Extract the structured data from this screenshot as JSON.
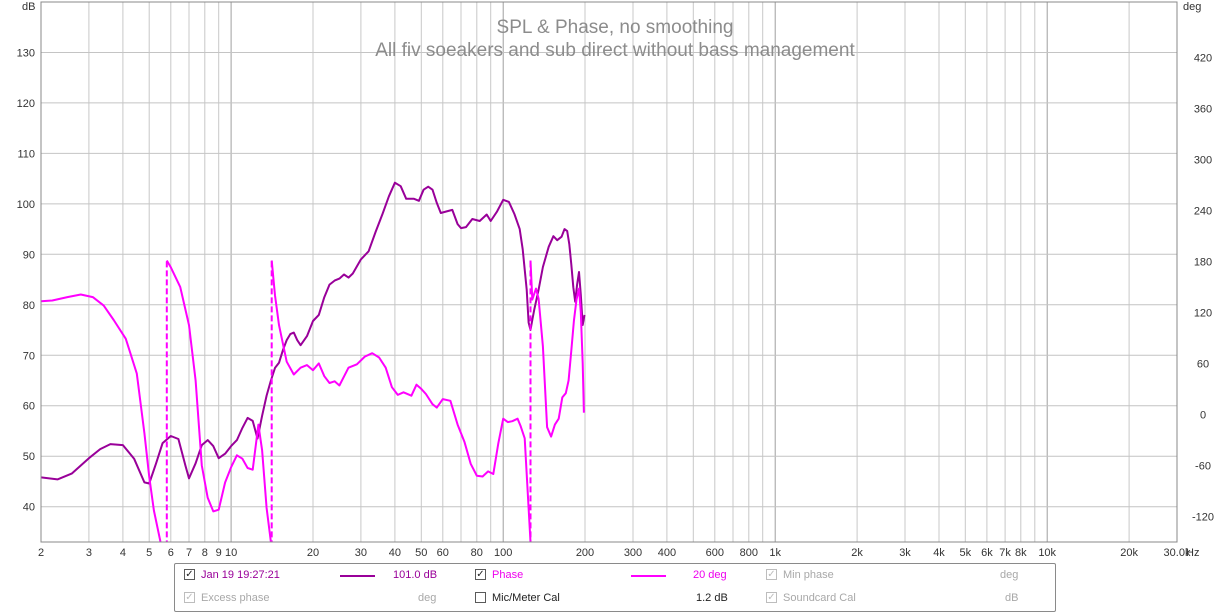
{
  "chart_data": {
    "type": "line",
    "title": "SPL & Phase, no smoothing",
    "subtitle": "All fiv soeakers and sub direct without bass management",
    "x_scale": "log",
    "xlim": [
      2,
      30000
    ],
    "x_unit": "Hz",
    "x_ticks": [
      {
        "v": 2,
        "label": "2"
      },
      {
        "v": 3,
        "label": "3"
      },
      {
        "v": 4,
        "label": "4"
      },
      {
        "v": 5,
        "label": "5"
      },
      {
        "v": 6,
        "label": "6"
      },
      {
        "v": 7,
        "label": "7"
      },
      {
        "v": 8,
        "label": "8"
      },
      {
        "v": 9,
        "label": "9"
      },
      {
        "v": 10,
        "label": "10"
      },
      {
        "v": 20,
        "label": "20"
      },
      {
        "v": 30,
        "label": "30"
      },
      {
        "v": 40,
        "label": "40"
      },
      {
        "v": 50,
        "label": "50"
      },
      {
        "v": 60,
        "label": "60"
      },
      {
        "v": 80,
        "label": "80"
      },
      {
        "v": 100,
        "label": "100"
      },
      {
        "v": 200,
        "label": "200"
      },
      {
        "v": 300,
        "label": "300"
      },
      {
        "v": 400,
        "label": "400"
      },
      {
        "v": 600,
        "label": "600"
      },
      {
        "v": 800,
        "label": "800"
      },
      {
        "v": 1000,
        "label": "1k"
      },
      {
        "v": 2000,
        "label": "2k"
      },
      {
        "v": 3000,
        "label": "3k"
      },
      {
        "v": 4000,
        "label": "4k"
      },
      {
        "v": 5000,
        "label": "5k"
      },
      {
        "v": 6000,
        "label": "6k"
      },
      {
        "v": 7000,
        "label": "7k"
      },
      {
        "v": 8000,
        "label": "8k"
      },
      {
        "v": 10000,
        "label": "10k"
      },
      {
        "v": 20000,
        "label": "20k"
      },
      {
        "v": 30000,
        "label": "30.0k"
      }
    ],
    "ylabel_left": "dB",
    "ylim_left": [
      33,
      140
    ],
    "y_ticks_left": [
      40,
      50,
      60,
      70,
      80,
      90,
      100,
      110,
      120,
      130
    ],
    "ylabel_right": "deg",
    "ylim_right": [
      -150,
      485
    ],
    "y_ticks_right": [
      -120,
      -60,
      0,
      60,
      120,
      180,
      240,
      300,
      360,
      420
    ],
    "grid": true,
    "series": [
      {
        "name": "Jan 19 19:27:21",
        "axis": "left",
        "color": "#990099",
        "points": [
          [
            2,
            45.8
          ],
          [
            2.3,
            45.4
          ],
          [
            2.6,
            46.6
          ],
          [
            3,
            49.6
          ],
          [
            3.3,
            51.4
          ],
          [
            3.6,
            52.4
          ],
          [
            4,
            52.2
          ],
          [
            4.4,
            49.5
          ],
          [
            4.8,
            44.8
          ],
          [
            5,
            44.6
          ],
          [
            5.3,
            48.6
          ],
          [
            5.6,
            52.6
          ],
          [
            6,
            54
          ],
          [
            6.4,
            53.4
          ],
          [
            6.8,
            48
          ],
          [
            7,
            45.6
          ],
          [
            7.4,
            48.6
          ],
          [
            7.8,
            52.2
          ],
          [
            8.2,
            53.2
          ],
          [
            8.6,
            52
          ],
          [
            9,
            49.6
          ],
          [
            9.5,
            50.5
          ],
          [
            10,
            52
          ],
          [
            10.5,
            53.2
          ],
          [
            11,
            55.6
          ],
          [
            11.5,
            57.6
          ],
          [
            12,
            57
          ],
          [
            12.5,
            53.5
          ],
          [
            13,
            58
          ],
          [
            13.5,
            62
          ],
          [
            14,
            65
          ],
          [
            14.5,
            67.5
          ],
          [
            15,
            68.5
          ],
          [
            15.5,
            71
          ],
          [
            16,
            73
          ],
          [
            16.5,
            74.2
          ],
          [
            17,
            74.5
          ],
          [
            17.5,
            73
          ],
          [
            18,
            72
          ],
          [
            19,
            73.8
          ],
          [
            20,
            76.8
          ],
          [
            21,
            78
          ],
          [
            22,
            81.5
          ],
          [
            23,
            84
          ],
          [
            24,
            84.8
          ],
          [
            25,
            85.2
          ],
          [
            26,
            86
          ],
          [
            27,
            85.4
          ],
          [
            28,
            86.2
          ],
          [
            30,
            89
          ],
          [
            32,
            90.6
          ],
          [
            34,
            94.5
          ],
          [
            36,
            98
          ],
          [
            38,
            101.5
          ],
          [
            40,
            104.2
          ],
          [
            42,
            103.5
          ],
          [
            44,
            101
          ],
          [
            47,
            101
          ],
          [
            49,
            100.6
          ],
          [
            51,
            102.8
          ],
          [
            53,
            103.4
          ],
          [
            55,
            102.8
          ],
          [
            57,
            100.2
          ],
          [
            59,
            98.2
          ],
          [
            62,
            98.5
          ],
          [
            65,
            98.8
          ],
          [
            68,
            96
          ],
          [
            70,
            95.2
          ],
          [
            73,
            95.4
          ],
          [
            77,
            97
          ],
          [
            82,
            96.6
          ],
          [
            87,
            97.9
          ],
          [
            90,
            96.6
          ],
          [
            95,
            98.5
          ],
          [
            100,
            100.8
          ],
          [
            105,
            100.4
          ],
          [
            110,
            98
          ],
          [
            115,
            95
          ],
          [
            118,
            91
          ],
          [
            120,
            87
          ],
          [
            122,
            83
          ],
          [
            124,
            76.5
          ],
          [
            126,
            75
          ],
          [
            128,
            77
          ],
          [
            130,
            79
          ],
          [
            135,
            83
          ],
          [
            140,
            87.5
          ],
          [
            147,
            91.5
          ],
          [
            153,
            93.6
          ],
          [
            158,
            92.8
          ],
          [
            164,
            93.5
          ],
          [
            168,
            95
          ],
          [
            172,
            94.6
          ],
          [
            175,
            92
          ],
          [
            178,
            88
          ],
          [
            181,
            83.5
          ],
          [
            184,
            80.6
          ],
          [
            187,
            84
          ],
          [
            190,
            86.5
          ],
          [
            193,
            82
          ],
          [
            196,
            76
          ],
          [
            199,
            78
          ]
        ]
      },
      {
        "name": "Phase",
        "axis": "right",
        "color": "#ff00ff",
        "segments": [
          [
            [
              2,
              133
            ],
            [
              2.2,
              134
            ],
            [
              2.5,
              138
            ],
            [
              2.8,
              141
            ],
            [
              3.1,
              138
            ],
            [
              3.4,
              128
            ],
            [
              3.7,
              111
            ],
            [
              4.1,
              89
            ],
            [
              4.5,
              48
            ],
            [
              4.8,
              -22
            ],
            [
              5,
              -73
            ],
            [
              5.2,
              -113
            ],
            [
              5.5,
              -150
            ]
          ],
          [
            [
              5.8,
              181
            ],
            [
              6,
              173
            ],
            [
              6.5,
              150
            ],
            [
              7,
              105
            ],
            [
              7.4,
              40
            ],
            [
              7.8,
              -60
            ],
            [
              8.2,
              -98
            ],
            [
              8.6,
              -114
            ],
            [
              9,
              -112
            ],
            [
              9.5,
              -80
            ],
            [
              10,
              -62
            ],
            [
              10.5,
              -48
            ],
            [
              11,
              -52
            ],
            [
              11.5,
              -63
            ],
            [
              12,
              -65
            ],
            [
              12.6,
              -12
            ],
            [
              13,
              -42
            ],
            [
              13.5,
              -110
            ],
            [
              14,
              -150
            ]
          ],
          [
            [
              14.1,
              181
            ],
            [
              14.5,
              140
            ],
            [
              15,
              105
            ],
            [
              16,
              62
            ],
            [
              17,
              47
            ],
            [
              18,
              55
            ],
            [
              19,
              58
            ],
            [
              20,
              52
            ],
            [
              21,
              60
            ],
            [
              22,
              45
            ],
            [
              23,
              37
            ],
            [
              24,
              39
            ],
            [
              25,
              34
            ],
            [
              27,
              55
            ],
            [
              29,
              59
            ],
            [
              31,
              68
            ],
            [
              33,
              72
            ],
            [
              35,
              67
            ],
            [
              37,
              55
            ],
            [
              39,
              32
            ],
            [
              41,
              23
            ],
            [
              43,
              26
            ],
            [
              46,
              22
            ],
            [
              48,
              35
            ],
            [
              50,
              30
            ],
            [
              52,
              24
            ],
            [
              55,
              12
            ],
            [
              57,
              8
            ],
            [
              60,
              18
            ],
            [
              64,
              16
            ],
            [
              68,
              -12
            ],
            [
              72,
              -32
            ],
            [
              76,
              -58
            ],
            [
              80,
              -72
            ],
            [
              84,
              -73
            ],
            [
              88,
              -67
            ],
            [
              92,
              -70
            ],
            [
              96,
              -34
            ],
            [
              100,
              -5
            ],
            [
              104,
              -9
            ],
            [
              108,
              -8
            ],
            [
              113,
              -5
            ],
            [
              116,
              -14
            ],
            [
              120,
              -28
            ],
            [
              126,
              -150
            ]
          ],
          [
            [
              126,
              181
            ],
            [
              128,
              135
            ],
            [
              132,
              148
            ],
            [
              135,
              136
            ],
            [
              140,
              80
            ],
            [
              145,
              -15
            ],
            [
              150,
              -26
            ],
            [
              155,
              -12
            ],
            [
              160,
              -5
            ],
            [
              165,
              20
            ],
            [
              170,
              25
            ],
            [
              174,
              40
            ],
            [
              178,
              75
            ],
            [
              182,
              110
            ],
            [
              186,
              135
            ],
            [
              190,
              148
            ],
            [
              193,
              120
            ],
            [
              196,
              60
            ],
            [
              198,
              2
            ]
          ]
        ],
        "wrap_lines": [
          5.8,
          14.1,
          126
        ]
      }
    ]
  },
  "legend": {
    "row1": {
      "measurement_name": "Jan 19 19:27:21",
      "measurement_value": "101.0 dB",
      "phase_label": "Phase",
      "phase_value": "20 deg",
      "min_phase_label": "Min phase",
      "min_phase_unit": "deg"
    },
    "row2": {
      "excess_phase_label": "Excess phase",
      "excess_phase_unit": "deg",
      "mic_cal_label": "Mic/Meter Cal",
      "mic_cal_value": "1.2 dB",
      "soundcard_cal_label": "Soundcard Cal",
      "soundcard_cal_unit": "dB"
    },
    "check_glyph": "✓"
  }
}
